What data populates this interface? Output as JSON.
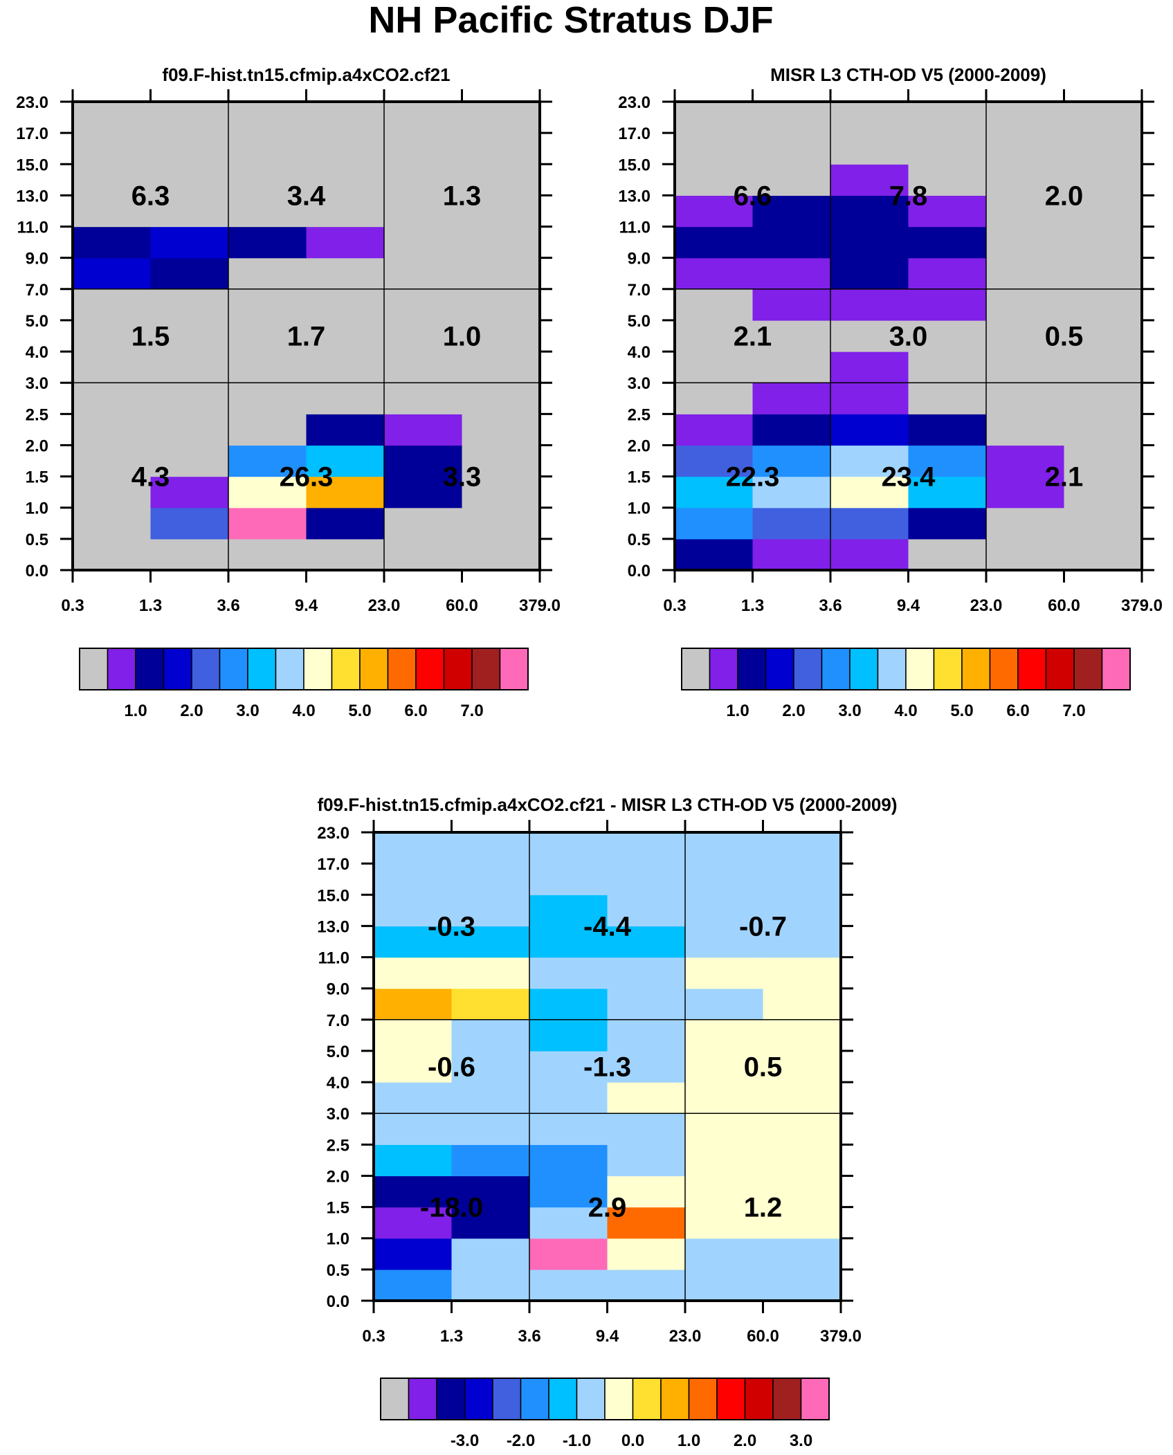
{
  "figure": {
    "title": "NH Pacific Stratus DJF",
    "x_tick_labels": [
      "0.3",
      "1.3",
      "3.6",
      "9.4",
      "23.0",
      "60.0",
      "379.0"
    ],
    "y_tick_labels": [
      "0.0",
      "0.5",
      "1.0",
      "1.5",
      "2.0",
      "2.5",
      "3.0",
      "4.0",
      "5.0",
      "7.0",
      "9.0",
      "11.0",
      "13.0",
      "15.0",
      "17.0",
      "23.0"
    ]
  },
  "chart_data": [
    {
      "type": "heatmap",
      "panel": "model",
      "title": "f09.F-hist.tn15.cfmip.a4xCO2.cf21",
      "xlabel": "",
      "ylabel": "",
      "x_bins": [
        "0.3",
        "1.3",
        "3.6",
        "9.4",
        "23.0",
        "60.0",
        "379.0"
      ],
      "y_bins": [
        "0.0",
        "0.5",
        "1.0",
        "1.5",
        "2.0",
        "2.5",
        "3.0",
        "4.0",
        "5.0",
        "7.0",
        "9.0",
        "11.0",
        "13.0",
        "15.0",
        "17.0",
        "23.0"
      ],
      "color_scale": [
        "#c6c6c6",
        "#8020e8",
        "#000098",
        "#0000d0",
        "#4060e0",
        "#2090ff",
        "#00c0ff",
        "#a0d4ff",
        "#ffffd0",
        "#ffe030",
        "#ffb000",
        "#ff6a00",
        "#ff0000",
        "#d00000",
        "#a02020",
        "#ff6ab8"
      ],
      "cells_color_index": [
        [
          0,
          0,
          0,
          0,
          0,
          0
        ],
        [
          0,
          4,
          15,
          2,
          0,
          0
        ],
        [
          0,
          1,
          8,
          10,
          2,
          0
        ],
        [
          0,
          0,
          5,
          6,
          2,
          0
        ],
        [
          0,
          0,
          0,
          2,
          1,
          0
        ],
        [
          0,
          0,
          0,
          0,
          0,
          0
        ],
        [
          0,
          0,
          0,
          0,
          0,
          0
        ],
        [
          0,
          0,
          0,
          0,
          0,
          0
        ],
        [
          0,
          0,
          0,
          0,
          0,
          0
        ],
        [
          3,
          2,
          0,
          0,
          0,
          0
        ],
        [
          2,
          3,
          2,
          1,
          0,
          0
        ],
        [
          0,
          0,
          0,
          0,
          0,
          0
        ],
        [
          0,
          0,
          0,
          0,
          0,
          0
        ],
        [
          0,
          0,
          0,
          0,
          0,
          0
        ],
        [
          0,
          0,
          0,
          0,
          0,
          0
        ]
      ],
      "region_values": [
        [
          "4.3",
          "26.3",
          "3.3"
        ],
        [
          "1.5",
          "1.7",
          "1.0"
        ],
        [
          "6.3",
          "3.4",
          "1.3"
        ]
      ],
      "colorbar": {
        "labels": [
          "1.0",
          "2.0",
          "3.0",
          "4.0",
          "5.0",
          "6.0",
          "7.0"
        ],
        "label_start_box": 1,
        "box_count": 16
      }
    },
    {
      "type": "heatmap",
      "panel": "observation",
      "title": "MISR L3 CTH-OD V5 (2000-2009)",
      "xlabel": "",
      "ylabel": "",
      "x_bins": [
        "0.3",
        "1.3",
        "3.6",
        "9.4",
        "23.0",
        "60.0",
        "379.0"
      ],
      "y_bins": [
        "0.0",
        "0.5",
        "1.0",
        "1.5",
        "2.0",
        "2.5",
        "3.0",
        "4.0",
        "5.0",
        "7.0",
        "9.0",
        "11.0",
        "13.0",
        "15.0",
        "17.0",
        "23.0"
      ],
      "color_scale": [
        "#c6c6c6",
        "#8020e8",
        "#000098",
        "#0000d0",
        "#4060e0",
        "#2090ff",
        "#00c0ff",
        "#a0d4ff",
        "#ffffd0",
        "#ffe030",
        "#ffb000",
        "#ff6a00",
        "#ff0000",
        "#d00000",
        "#a02020",
        "#ff6ab8"
      ],
      "cells_color_index": [
        [
          2,
          1,
          1,
          0,
          0,
          0
        ],
        [
          5,
          4,
          4,
          2,
          0,
          0
        ],
        [
          6,
          7,
          8,
          6,
          1,
          0
        ],
        [
          4,
          5,
          7,
          5,
          1,
          0
        ],
        [
          1,
          2,
          3,
          2,
          0,
          0
        ],
        [
          0,
          1,
          1,
          0,
          0,
          0
        ],
        [
          0,
          0,
          1,
          0,
          0,
          0
        ],
        [
          0,
          0,
          0,
          0,
          0,
          0
        ],
        [
          0,
          1,
          1,
          1,
          0,
          0
        ],
        [
          1,
          1,
          2,
          1,
          0,
          0
        ],
        [
          2,
          2,
          2,
          2,
          0,
          0
        ],
        [
          1,
          2,
          2,
          1,
          0,
          0
        ],
        [
          0,
          0,
          1,
          0,
          0,
          0
        ],
        [
          0,
          0,
          0,
          0,
          0,
          0
        ],
        [
          0,
          0,
          0,
          0,
          0,
          0
        ]
      ],
      "region_values": [
        [
          "22.3",
          "23.4",
          "2.1"
        ],
        [
          "2.1",
          "3.0",
          "0.5"
        ],
        [
          "6.6",
          "7.8",
          "2.0"
        ]
      ],
      "colorbar": {
        "labels": [
          "1.0",
          "2.0",
          "3.0",
          "4.0",
          "5.0",
          "6.0",
          "7.0"
        ],
        "label_start_box": 1,
        "box_count": 16
      }
    },
    {
      "type": "heatmap",
      "panel": "difference",
      "title": "f09.F-hist.tn15.cfmip.a4xCO2.cf21 - MISR L3 CTH-OD V5 (2000-2009)",
      "xlabel": "",
      "ylabel": "",
      "x_bins": [
        "0.3",
        "1.3",
        "3.6",
        "9.4",
        "23.0",
        "60.0",
        "379.0"
      ],
      "y_bins": [
        "0.0",
        "0.5",
        "1.0",
        "1.5",
        "2.0",
        "2.5",
        "3.0",
        "4.0",
        "5.0",
        "7.0",
        "9.0",
        "11.0",
        "13.0",
        "15.0",
        "17.0",
        "23.0"
      ],
      "color_scale": [
        "#c6c6c6",
        "#8020e8",
        "#000098",
        "#0000d0",
        "#4060e0",
        "#2090ff",
        "#00c0ff",
        "#a0d4ff",
        "#ffffd0",
        "#ffe030",
        "#ffb000",
        "#ff6a00",
        "#ff0000",
        "#d00000",
        "#a02020",
        "#ff6ab8"
      ],
      "cells_color_index": [
        [
          5,
          7,
          7,
          7,
          7,
          7
        ],
        [
          3,
          7,
          15,
          8,
          7,
          7
        ],
        [
          1,
          2,
          7,
          11,
          8,
          8
        ],
        [
          2,
          2,
          5,
          8,
          8,
          8
        ],
        [
          6,
          5,
          5,
          7,
          8,
          8
        ],
        [
          7,
          7,
          7,
          7,
          8,
          8
        ],
        [
          7,
          7,
          7,
          8,
          8,
          8
        ],
        [
          8,
          7,
          7,
          7,
          8,
          8
        ],
        [
          8,
          7,
          6,
          7,
          8,
          8
        ],
        [
          10,
          9,
          6,
          7,
          7,
          8
        ],
        [
          8,
          8,
          7,
          7,
          8,
          8
        ],
        [
          6,
          6,
          6,
          6,
          7,
          7
        ],
        [
          7,
          7,
          6,
          7,
          7,
          7
        ],
        [
          7,
          7,
          7,
          7,
          7,
          7
        ],
        [
          7,
          7,
          7,
          7,
          7,
          7
        ]
      ],
      "region_values": [
        [
          "-18.0",
          "2.9",
          "1.2"
        ],
        [
          "-0.6",
          "-1.3",
          "0.5"
        ],
        [
          "-0.3",
          "-4.4",
          "-0.7"
        ]
      ],
      "colorbar": {
        "labels": [
          "-3.0",
          "-2.0",
          "-1.0",
          "0.0",
          "1.0",
          "2.0",
          "3.0"
        ],
        "label_start_box": 2,
        "box_count": 16
      }
    }
  ]
}
